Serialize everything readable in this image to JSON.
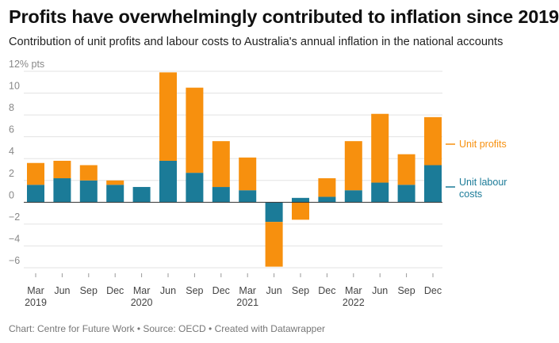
{
  "title": "Profits have overwhelmingly contributed to inflation since 2019",
  "subtitle": "Contribution of unit profits and labour costs to Australia's annual inflation in the national accounts",
  "footer": "Chart: Centre for Future Work • Source: OECD • Created with Datawrapper",
  "colors": {
    "unit_profits": "#f7900e",
    "unit_labour_costs": "#1b7b98"
  },
  "chart_data": {
    "type": "bar",
    "stacked": true,
    "y_unit_label": "12% pts",
    "ylim": [
      -6,
      12
    ],
    "yticks": [
      -6,
      -4,
      -2,
      0,
      2,
      4,
      6,
      8,
      10,
      12
    ],
    "grid": true,
    "categories": [
      "Mar 2019",
      "Jun 2019",
      "Sep 2019",
      "Dec 2019",
      "Mar 2020",
      "Jun 2020",
      "Sep 2020",
      "Dec 2020",
      "Mar 2021",
      "Jun 2021",
      "Sep 2021",
      "Dec 2021",
      "Mar 2022",
      "Jun 2022",
      "Sep 2022",
      "Dec 2022"
    ],
    "tick_labels": [
      {
        "line1": "Mar",
        "line2": "2019"
      },
      {
        "line1": "Jun",
        "line2": ""
      },
      {
        "line1": "Sep",
        "line2": ""
      },
      {
        "line1": "Dec",
        "line2": ""
      },
      {
        "line1": "Mar",
        "line2": "2020"
      },
      {
        "line1": "Jun",
        "line2": ""
      },
      {
        "line1": "Sep",
        "line2": ""
      },
      {
        "line1": "Dec",
        "line2": ""
      },
      {
        "line1": "Mar",
        "line2": "2021"
      },
      {
        "line1": "Jun",
        "line2": ""
      },
      {
        "line1": "Sep",
        "line2": ""
      },
      {
        "line1": "Dec",
        "line2": ""
      },
      {
        "line1": "Mar",
        "line2": "2022"
      },
      {
        "line1": "Jun",
        "line2": ""
      },
      {
        "line1": "Sep",
        "line2": ""
      },
      {
        "line1": "Dec",
        "line2": ""
      }
    ],
    "series": [
      {
        "name": "Unit labour costs",
        "key": "unit_labour_costs",
        "values": [
          1.6,
          2.2,
          2.0,
          1.6,
          1.4,
          3.8,
          2.7,
          1.4,
          1.1,
          -1.8,
          0.4,
          0.5,
          1.1,
          1.8,
          1.6,
          3.4
        ]
      },
      {
        "name": "Unit profits",
        "key": "unit_profits",
        "values": [
          2.0,
          1.6,
          1.4,
          0.4,
          0.0,
          8.1,
          7.8,
          4.2,
          3.0,
          -4.1,
          -1.6,
          1.7,
          4.5,
          6.3,
          2.8,
          4.4
        ]
      }
    ],
    "legend": [
      {
        "lines": [
          "Unit profits"
        ],
        "key": "unit_profits"
      },
      {
        "lines": [
          "Unit labour",
          "costs"
        ],
        "key": "unit_labour_costs"
      }
    ],
    "legend_placement": "right"
  }
}
